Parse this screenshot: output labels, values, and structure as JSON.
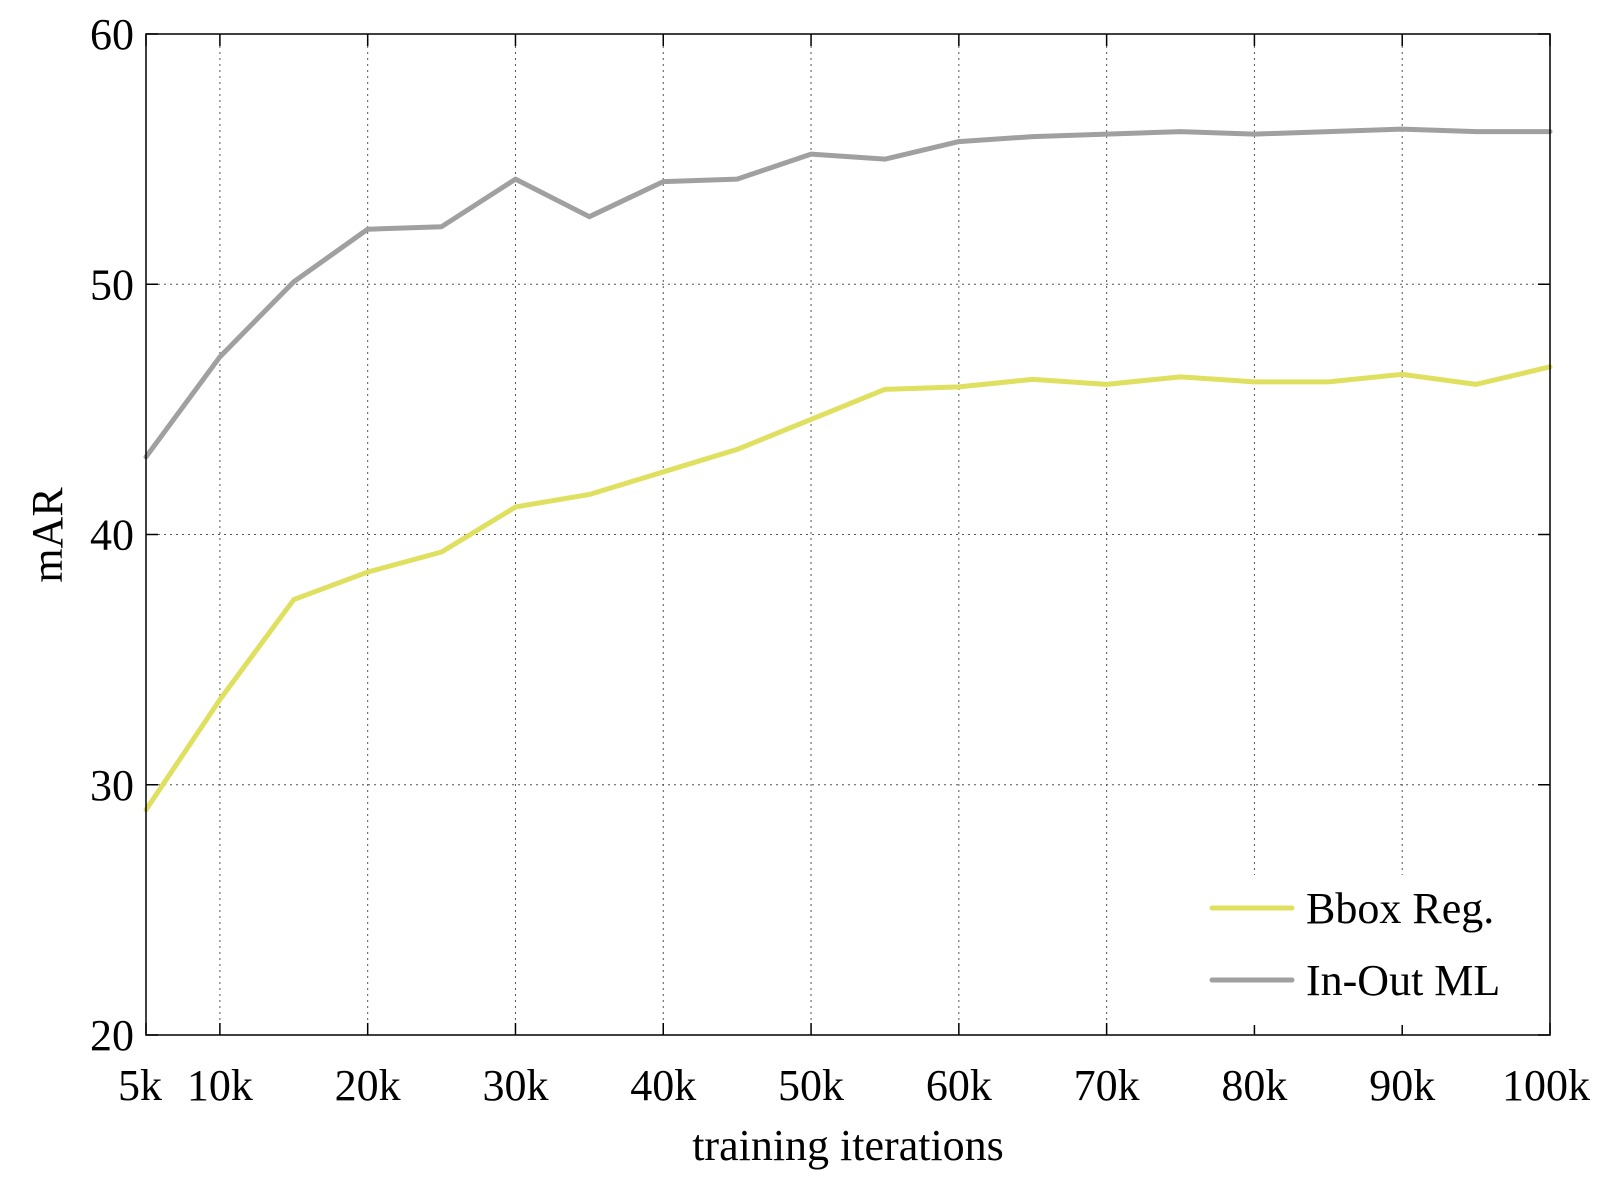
{
  "chart_data": {
    "type": "line",
    "title": "",
    "xlabel": "training iterations",
    "ylabel": "mAR",
    "xlim": [
      5,
      100
    ],
    "ylim": [
      20,
      60
    ],
    "xticks": [
      5,
      10,
      20,
      30,
      40,
      50,
      60,
      70,
      80,
      90,
      100
    ],
    "xtick_labels": [
      "5k",
      "10k",
      "20k",
      "30k",
      "40k",
      "50k",
      "60k",
      "70k",
      "80k",
      "90k",
      "100k"
    ],
    "yticks": [
      20,
      30,
      40,
      50,
      60
    ],
    "ytick_labels": [
      "20",
      "30",
      "40",
      "50",
      "60"
    ],
    "grid": true,
    "legend_position": "bottom-right",
    "x": [
      5,
      10,
      15,
      20,
      25,
      30,
      35,
      40,
      45,
      50,
      55,
      60,
      65,
      70,
      75,
      80,
      85,
      90,
      95,
      100
    ],
    "series": [
      {
        "name": "Bbox Reg.",
        "color": "#e0e060",
        "values": [
          29.0,
          33.4,
          37.4,
          38.5,
          39.3,
          41.1,
          41.6,
          42.5,
          43.4,
          44.6,
          45.8,
          45.9,
          46.2,
          46.0,
          46.3,
          46.1,
          46.1,
          46.4,
          46.0,
          46.7
        ]
      },
      {
        "name": "In-Out ML",
        "color": "#a0a0a0",
        "values": [
          43.1,
          47.1,
          50.1,
          52.2,
          52.3,
          54.2,
          52.7,
          54.1,
          54.2,
          55.2,
          55.0,
          55.7,
          55.9,
          56.0,
          56.1,
          56.0,
          56.1,
          56.2,
          56.1,
          56.1
        ]
      }
    ]
  }
}
